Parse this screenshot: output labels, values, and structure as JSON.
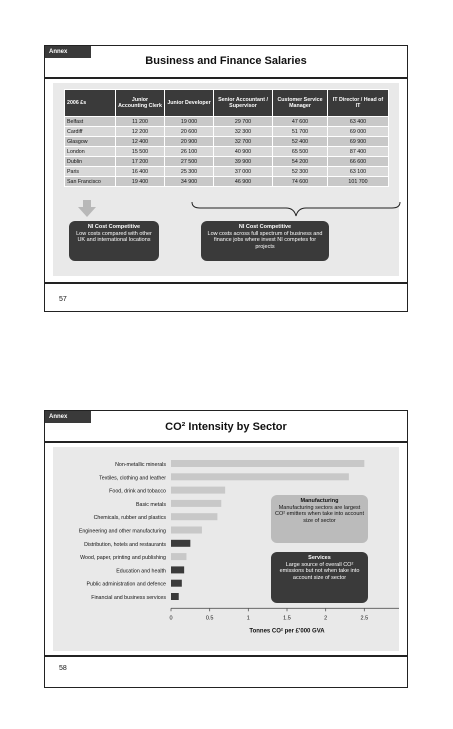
{
  "slide1": {
    "annex": "Annex",
    "title": "Business and Finance Salaries",
    "headers": [
      "2006\n£s",
      "Junior Accounting Clerk",
      "Junior Developer",
      "Senior Accountant / Supervisor",
      "Customer Service Manager",
      "IT Director / Head of IT"
    ],
    "rows": [
      [
        "Belfast",
        "11 200",
        "19 000",
        "29 700",
        "47 600",
        "63 400"
      ],
      [
        "Cardiff",
        "12 200",
        "20 600",
        "32 300",
        "51 700",
        "69 000"
      ],
      [
        "Glasgow",
        "12 400",
        "20 900",
        "32 700",
        "52 400",
        "69 900"
      ],
      [
        "London",
        "15 500",
        "26 100",
        "40 900",
        "65 500",
        "87 400"
      ],
      [
        "Dublin",
        "17 200",
        "27 500",
        "39 900",
        "54 200",
        "66 600"
      ],
      [
        "Paris",
        "16 400",
        "25 300",
        "37 000",
        "52 300",
        "63 100"
      ],
      [
        "San Francisco",
        "19 400",
        "34 900",
        "46 900",
        "74 600",
        "101 700"
      ]
    ],
    "box_left": {
      "title": "NI Cost Competitive",
      "text": "Low costs compared with other UK and international locations"
    },
    "box_right": {
      "title": "NI Cost Competitive",
      "text": "Low costs across full spectrum of business and finance jobs where invest NI competes for projects"
    },
    "page": "57"
  },
  "slide2": {
    "annex": "Annex",
    "title": "CO² Intensity by Sector",
    "note_manufacturing": {
      "title": "Manufacturing",
      "text": "Manufacturing sectors are largest CO² emitters when take into account size of sector"
    },
    "note_services": {
      "title": "Services",
      "text": "Large source of overall CO² emissions but not when take into account size of sector"
    },
    "page": "58"
  },
  "chart_data": {
    "type": "bar",
    "orientation": "horizontal",
    "categories": [
      "Non-metallic minerals",
      "Textiles, clothing and leather",
      "Food, drink and tobacco",
      "Basic metals",
      "Chemicals, rubber and plastics",
      "Engineering and other manufacturing",
      "Distribution, hotels and restaurants",
      "Wood, paper, printing and publishing",
      "Education and health",
      "Public administration and defence",
      "Financial and business services"
    ],
    "values": [
      2.5,
      2.3,
      0.7,
      0.65,
      0.6,
      0.4,
      0.25,
      0.2,
      0.17,
      0.14,
      0.1
    ],
    "groups": [
      "manufacturing",
      "manufacturing",
      "manufacturing",
      "manufacturing",
      "manufacturing",
      "manufacturing",
      "services",
      "manufacturing",
      "services",
      "services",
      "services"
    ],
    "colors": {
      "manufacturing": "#c8c8c8",
      "services": "#3a3a3a"
    },
    "xlim": [
      0,
      3
    ],
    "xticks": [
      "0",
      "0.5",
      "1",
      "1.5",
      "2",
      "2.5",
      "3"
    ],
    "xlabel": "Tonnes CO² per £'000 GVA",
    "ylabel": "",
    "title": ""
  }
}
